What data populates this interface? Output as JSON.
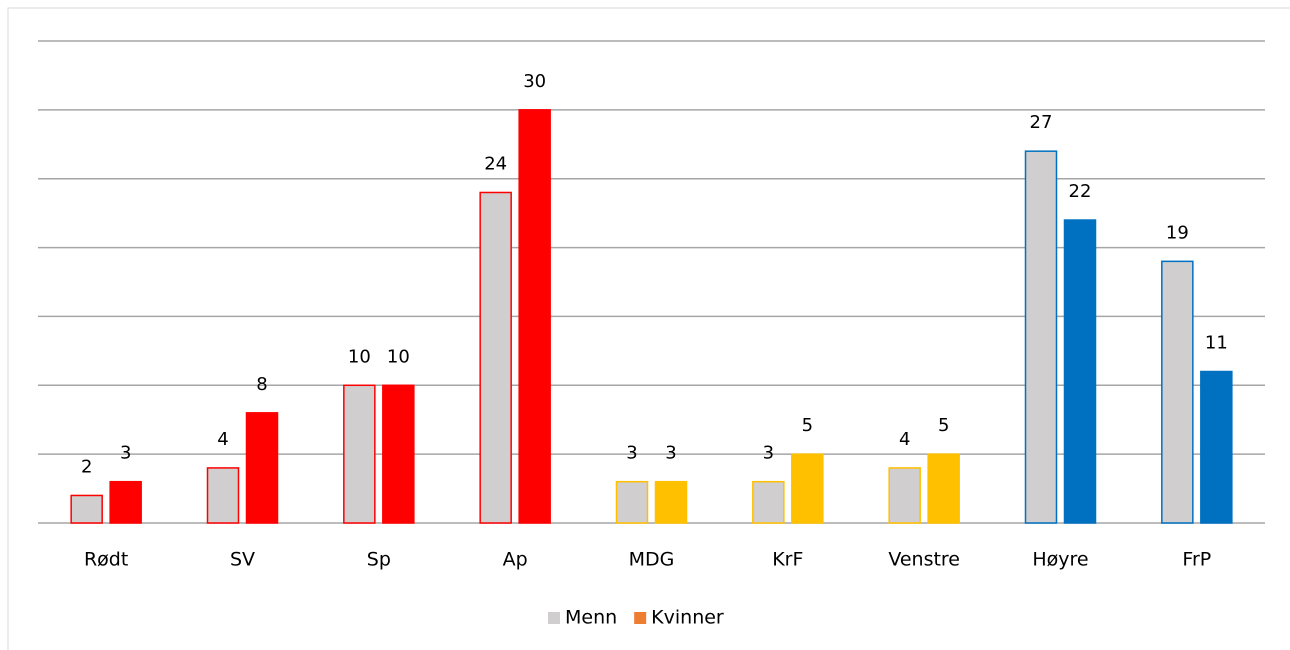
{
  "chart_data": {
    "type": "bar",
    "categories": [
      "Rødt",
      "SV",
      "Sp",
      "Ap",
      "MDG",
      "KrF",
      "Venstre",
      "Høyre",
      "FrP"
    ],
    "series": [
      {
        "name": "Menn",
        "color": "#d0cece",
        "values": [
          2,
          4,
          10,
          24,
          3,
          3,
          4,
          27,
          19
        ]
      },
      {
        "name": "Kvinner",
        "color": "#ed7d31",
        "values": [
          3,
          8,
          10,
          30,
          3,
          5,
          5,
          22,
          11
        ]
      }
    ],
    "category_colors": [
      "#ff0000",
      "#ff0000",
      "#ff0000",
      "#ff0000",
      "#ffc000",
      "#ffc000",
      "#ffc000",
      "#0070c0",
      "#0070c0"
    ],
    "ylim": [
      0,
      35
    ],
    "yticks": [
      0,
      5,
      10,
      15,
      20,
      25,
      30,
      35
    ],
    "grid": true,
    "legend": "bottom"
  }
}
